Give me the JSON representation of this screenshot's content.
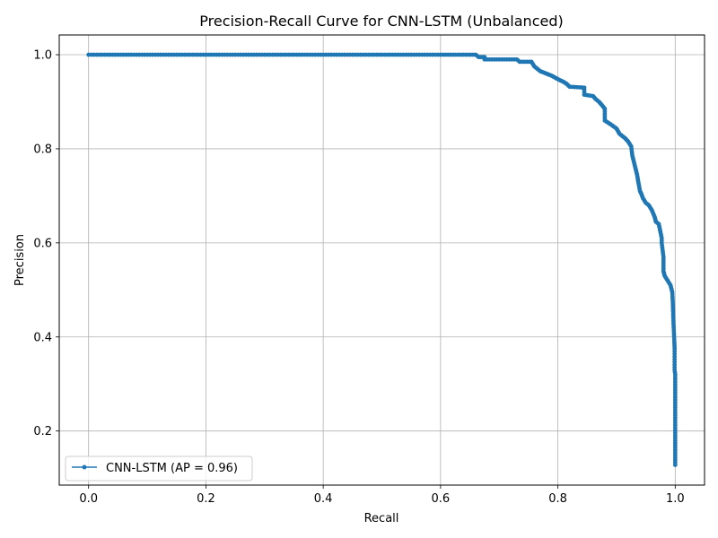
{
  "chart_data": {
    "type": "line",
    "title": "Precision-Recall Curve for CNN-LSTM (Unbalanced)",
    "xlabel": "Recall",
    "ylabel": "Precision",
    "xlim": [
      -0.05,
      1.05
    ],
    "ylim": [
      0.085,
      1.042
    ],
    "xticks": [
      0.0,
      0.2,
      0.4,
      0.6,
      0.8,
      1.0
    ],
    "xtick_labels": [
      "0.0",
      "0.2",
      "0.4",
      "0.6",
      "0.8",
      "1.0"
    ],
    "yticks": [
      0.2,
      0.4,
      0.6,
      0.8,
      1.0
    ],
    "ytick_labels": [
      "0.2",
      "0.4",
      "0.6",
      "0.8",
      "1.0"
    ],
    "grid": true,
    "legend_position": "lower-left",
    "series": [
      {
        "name": "CNN-LSTM (AP = 0.96)",
        "color": "#1f77b4",
        "marker": "dot",
        "x": [
          0.0,
          0.1,
          0.2,
          0.3,
          0.4,
          0.5,
          0.6,
          0.66,
          0.665,
          0.675,
          0.675,
          0.7,
          0.73,
          0.735,
          0.755,
          0.76,
          0.77,
          0.78,
          0.79,
          0.8,
          0.81,
          0.815,
          0.82,
          0.845,
          0.845,
          0.86,
          0.865,
          0.87,
          0.875,
          0.88,
          0.88,
          0.89,
          0.9,
          0.905,
          0.915,
          0.92,
          0.925,
          0.927,
          0.932,
          0.935,
          0.937,
          0.94,
          0.942,
          0.945,
          0.95,
          0.955,
          0.96,
          0.965,
          0.967,
          0.972,
          0.977,
          0.977,
          0.98,
          0.98,
          0.982,
          0.987,
          0.992,
          0.995,
          0.996,
          0.997,
          0.998,
          0.999,
          0.999,
          1.0,
          1.0,
          1.0,
          1.0
        ],
        "y": [
          1.0,
          1.0,
          1.0,
          1.0,
          1.0,
          1.0,
          1.0,
          1.0,
          0.995,
          0.995,
          0.99,
          0.99,
          0.99,
          0.985,
          0.985,
          0.975,
          0.965,
          0.96,
          0.955,
          0.948,
          0.942,
          0.938,
          0.932,
          0.93,
          0.915,
          0.912,
          0.905,
          0.9,
          0.893,
          0.885,
          0.86,
          0.852,
          0.843,
          0.832,
          0.822,
          0.815,
          0.805,
          0.785,
          0.76,
          0.745,
          0.73,
          0.71,
          0.705,
          0.695,
          0.685,
          0.68,
          0.67,
          0.655,
          0.645,
          0.64,
          0.61,
          0.6,
          0.57,
          0.54,
          0.53,
          0.52,
          0.51,
          0.495,
          0.47,
          0.43,
          0.405,
          0.375,
          0.33,
          0.32,
          0.25,
          0.18,
          0.128
        ]
      }
    ]
  }
}
